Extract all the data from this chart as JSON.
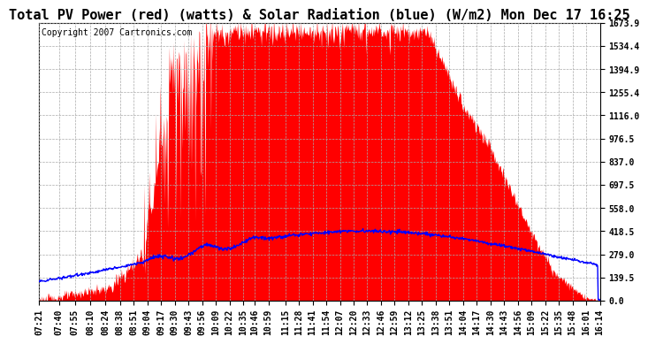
{
  "title": "Total PV Power (red) (watts) & Solar Radiation (blue) (W/m2) Mon Dec 17 16:25",
  "copyright_text": "Copyright 2007 Cartronics.com",
  "background_color": "#ffffff",
  "plot_bg_color": "#ffffff",
  "grid_color": "#aaaaaa",
  "y_min": 0.0,
  "y_max": 1673.9,
  "y_ticks": [
    0.0,
    139.5,
    279.0,
    418.5,
    558.0,
    697.5,
    837.0,
    976.5,
    1116.0,
    1255.4,
    1394.9,
    1534.4,
    1673.9
  ],
  "x_labels": [
    "07:21",
    "07:40",
    "07:55",
    "08:10",
    "08:24",
    "08:38",
    "08:51",
    "09:04",
    "09:17",
    "09:30",
    "09:43",
    "09:56",
    "10:09",
    "10:22",
    "10:35",
    "10:46",
    "10:59",
    "11:15",
    "11:28",
    "11:41",
    "11:54",
    "12:07",
    "12:20",
    "12:33",
    "12:46",
    "12:59",
    "13:12",
    "13:25",
    "13:38",
    "13:51",
    "14:04",
    "14:17",
    "14:30",
    "14:43",
    "14:56",
    "15:09",
    "15:22",
    "15:35",
    "15:48",
    "16:01",
    "16:14"
  ],
  "pv_color": "#ff0000",
  "solar_color": "#0000ff",
  "title_fontsize": 11,
  "tick_fontsize": 7,
  "copyright_fontsize": 7
}
